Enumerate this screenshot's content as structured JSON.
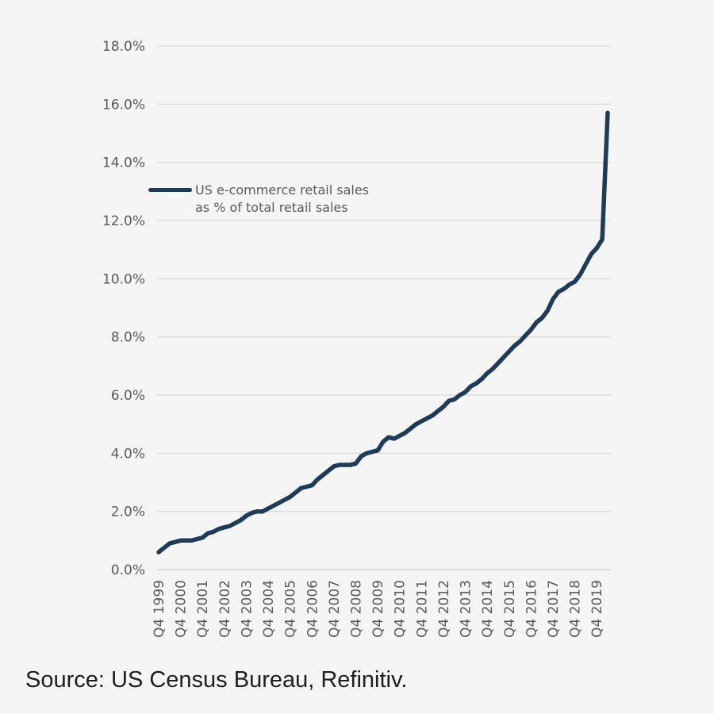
{
  "page": {
    "background": "#f5f5f6"
  },
  "source_note": "Source: US Census Bureau, Refinitiv.",
  "chart_data": {
    "type": "line",
    "title": "",
    "xlabel": "",
    "ylabel": "",
    "legend": [
      "US e-commerce retail sales",
      "as % of total retail sales"
    ],
    "legend_position": "inside upper-left of plot",
    "grid": true,
    "ylim": [
      0,
      18
    ],
    "ytick_step": 2,
    "yticks": [
      "0.0%",
      "2.0%",
      "4.0%",
      "6.0%",
      "8.0%",
      "10.0%",
      "12.0%",
      "14.0%",
      "16.0%",
      "18.0%"
    ],
    "categories": [
      "Q4 1999",
      "Q4 2000",
      "Q4 2001",
      "Q4 2002",
      "Q4 2003",
      "Q4 2004",
      "Q4 2005",
      "Q4 2006",
      "Q4 2007",
      "Q4 2008",
      "Q4 2009",
      "Q4 2010",
      "Q4 2011",
      "Q4 2012",
      "Q4 2013",
      "Q4 2014",
      "Q4 2015",
      "Q4 2016",
      "Q4 2017",
      "Q4 2018",
      "Q4 2019"
    ],
    "x_frequency": "quarterly",
    "x_first_point": "Q4 1999",
    "x_ticks_every_quarters": 4,
    "values": [
      0.6,
      0.75,
      0.9,
      0.95,
      1.0,
      1.0,
      1.0,
      1.05,
      1.1,
      1.25,
      1.3,
      1.4,
      1.45,
      1.5,
      1.6,
      1.7,
      1.85,
      1.95,
      2.0,
      2.0,
      2.1,
      2.2,
      2.3,
      2.4,
      2.5,
      2.65,
      2.8,
      2.85,
      2.9,
      3.1,
      3.25,
      3.4,
      3.55,
      3.6,
      3.6,
      3.6,
      3.65,
      3.9,
      4.0,
      4.05,
      4.1,
      4.4,
      4.55,
      4.5,
      4.6,
      4.7,
      4.85,
      5.0,
      5.1,
      5.2,
      5.3,
      5.45,
      5.6,
      5.8,
      5.85,
      6.0,
      6.1,
      6.3,
      6.4,
      6.55,
      6.75,
      6.9,
      7.1,
      7.3,
      7.5,
      7.7,
      7.85,
      8.05,
      8.25,
      8.5,
      8.65,
      8.9,
      9.3,
      9.55,
      9.65,
      9.8,
      9.9,
      10.15,
      10.5,
      10.85,
      11.05,
      11.35,
      15.7
    ],
    "line_color": "#1f3b57",
    "grid_color": "#dcdcdc",
    "axis_line_color": "#c9c9c9",
    "tick_label_color": "#595959"
  }
}
